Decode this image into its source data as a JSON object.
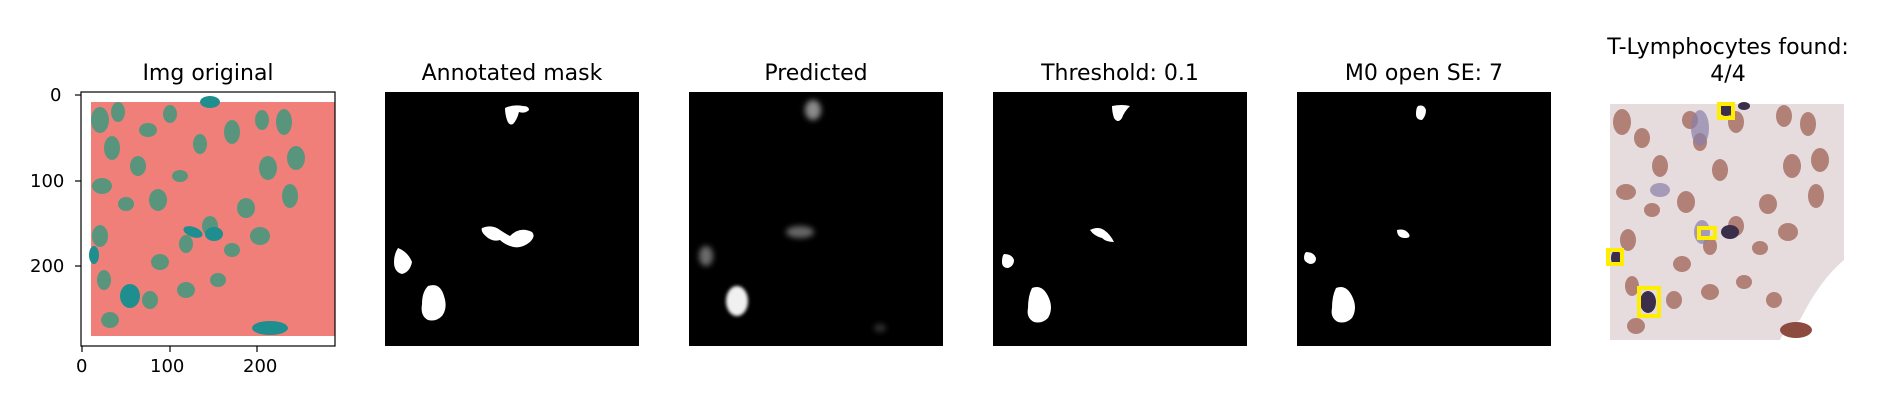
{
  "panels": [
    {
      "title": "Img original"
    },
    {
      "title": "Annotated mask"
    },
    {
      "title": "Predicted"
    },
    {
      "title": "Threshold: 0.1"
    },
    {
      "title": "M0 open SE: 7"
    },
    {
      "title_line1": "T-Lymphocytes found:",
      "title_line2": "4/4"
    }
  ],
  "axes": {
    "y_ticks": [
      "0",
      "100",
      "200"
    ],
    "x_ticks": [
      "0",
      "100",
      "200"
    ]
  },
  "colors": {
    "tint_background": "#f07f79",
    "cell_green": "#3f9a7d",
    "cell_teal": "#1f8e8e",
    "mask_background": "#000000",
    "mask_white": "#ffffff",
    "box_yellow": "#ffee00"
  }
}
